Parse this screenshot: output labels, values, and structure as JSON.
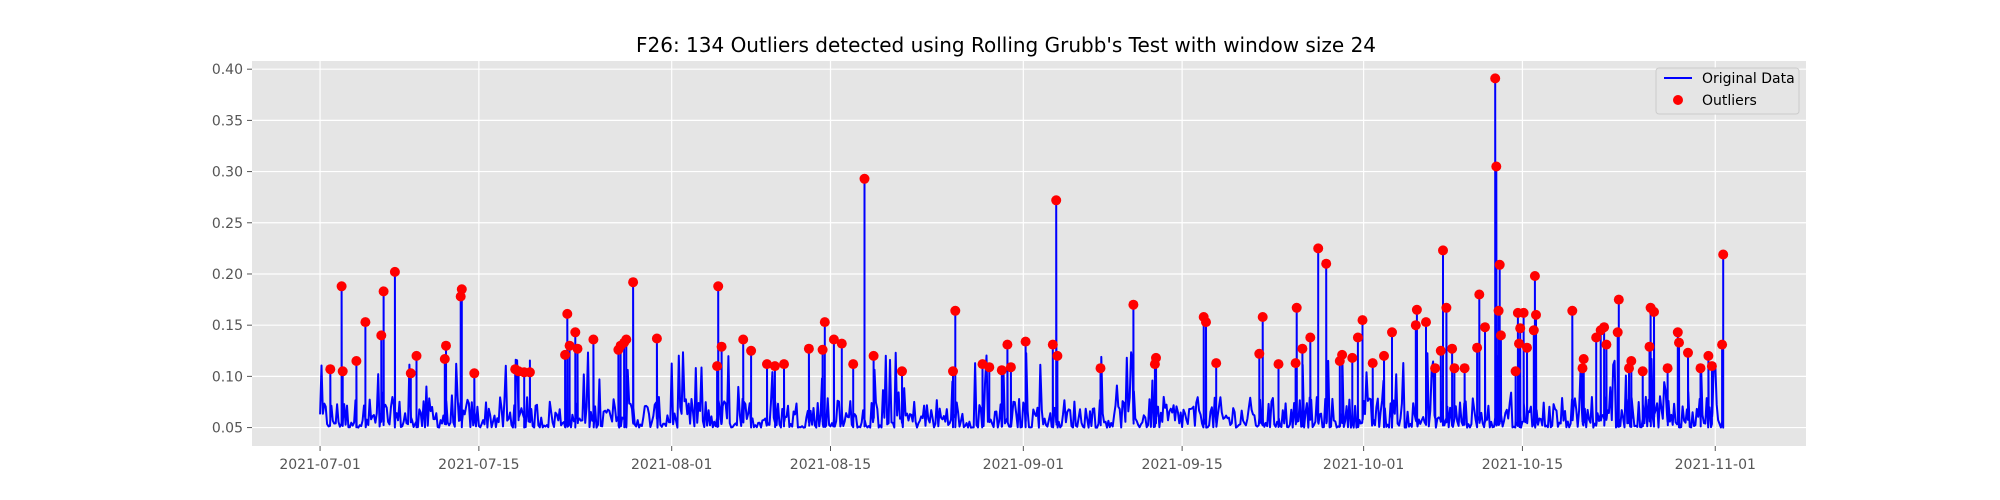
{
  "chart_data": {
    "type": "line",
    "title": "F26: 134 Outliers detected using Rolling Grubb's Test with window size 24",
    "xlabel": "",
    "ylabel": "",
    "x_tick_labels": [
      "2021-07-01",
      "2021-07-15",
      "2021-08-01",
      "2021-08-15",
      "2021-09-01",
      "2021-09-15",
      "2021-10-01",
      "2021-10-15",
      "2021-11-01"
    ],
    "x_tick_days": [
      0,
      14,
      31,
      45,
      62,
      76,
      92,
      106,
      123
    ],
    "xlim_days": [
      -6,
      131
    ],
    "y_ticks": [
      0.05,
      0.1,
      0.15,
      0.2,
      0.25,
      0.3,
      0.35,
      0.4
    ],
    "y_tick_labels": [
      "0.05",
      "0.10",
      "0.15",
      "0.20",
      "0.25",
      "0.30",
      "0.35",
      "0.40"
    ],
    "ylim": [
      0.032,
      0.408
    ],
    "baseline": 0.05,
    "grid": true,
    "legend": {
      "placement": "top-right",
      "entries": [
        "Original Data",
        "Outliers"
      ]
    },
    "colors": {
      "line": "#0000ff",
      "outlier": "#ff0000",
      "background": "#e5e5e5",
      "grid": "#ffffff"
    },
    "series": [
      {
        "name": "Original Data",
        "kind": "line"
      },
      {
        "name": "Outliers",
        "kind": "scatter",
        "points": [
          [
            0.9,
            0.107
          ],
          [
            1.9,
            0.188
          ],
          [
            2.0,
            0.105
          ],
          [
            3.2,
            0.115
          ],
          [
            4.0,
            0.153
          ],
          [
            5.4,
            0.14
          ],
          [
            5.6,
            0.183
          ],
          [
            6.6,
            0.202
          ],
          [
            8.0,
            0.103
          ],
          [
            8.5,
            0.12
          ],
          [
            11.0,
            0.117
          ],
          [
            11.1,
            0.13
          ],
          [
            12.4,
            0.178
          ],
          [
            12.5,
            0.185
          ],
          [
            13.6,
            0.103
          ],
          [
            17.2,
            0.107
          ],
          [
            17.5,
            0.105
          ],
          [
            18.0,
            0.104
          ],
          [
            18.5,
            0.104
          ],
          [
            21.6,
            0.121
          ],
          [
            21.8,
            0.161
          ],
          [
            22.0,
            0.13
          ],
          [
            22.5,
            0.143
          ],
          [
            22.7,
            0.127
          ],
          [
            24.1,
            0.136
          ],
          [
            26.3,
            0.126
          ],
          [
            26.5,
            0.13
          ],
          [
            26.8,
            0.133
          ],
          [
            27.0,
            0.136
          ],
          [
            27.6,
            0.192
          ],
          [
            29.7,
            0.137
          ],
          [
            35.0,
            0.11
          ],
          [
            35.1,
            0.188
          ],
          [
            35.4,
            0.129
          ],
          [
            37.3,
            0.136
          ],
          [
            38.0,
            0.125
          ],
          [
            39.4,
            0.112
          ],
          [
            40.1,
            0.11
          ],
          [
            40.9,
            0.112
          ],
          [
            43.1,
            0.127
          ],
          [
            44.3,
            0.126
          ],
          [
            44.5,
            0.153
          ],
          [
            45.3,
            0.136
          ],
          [
            46.0,
            0.132
          ],
          [
            47.0,
            0.112
          ],
          [
            48.0,
            0.293
          ],
          [
            48.8,
            0.12
          ],
          [
            51.3,
            0.105
          ],
          [
            55.8,
            0.105
          ],
          [
            56.0,
            0.164
          ],
          [
            58.4,
            0.112
          ],
          [
            59.0,
            0.109
          ],
          [
            60.1,
            0.106
          ],
          [
            60.6,
            0.131
          ],
          [
            60.9,
            0.109
          ],
          [
            62.2,
            0.134
          ],
          [
            64.6,
            0.131
          ],
          [
            64.9,
            0.272
          ],
          [
            65.0,
            0.12
          ],
          [
            68.8,
            0.108
          ],
          [
            71.7,
            0.17
          ],
          [
            73.6,
            0.112
          ],
          [
            73.7,
            0.118
          ],
          [
            77.9,
            0.158
          ],
          [
            78.1,
            0.153
          ],
          [
            79.0,
            0.113
          ],
          [
            82.8,
            0.122
          ],
          [
            83.1,
            0.158
          ],
          [
            84.5,
            0.112
          ],
          [
            86.0,
            0.113
          ],
          [
            86.1,
            0.167
          ],
          [
            86.6,
            0.127
          ],
          [
            87.3,
            0.138
          ],
          [
            88.0,
            0.225
          ],
          [
            88.7,
            0.21
          ],
          [
            89.9,
            0.115
          ],
          [
            90.1,
            0.121
          ],
          [
            91.0,
            0.118
          ],
          [
            91.5,
            0.138
          ],
          [
            91.9,
            0.155
          ],
          [
            92.8,
            0.113
          ],
          [
            93.8,
            0.12
          ],
          [
            94.5,
            0.143
          ],
          [
            96.6,
            0.15
          ],
          [
            96.7,
            0.165
          ],
          [
            97.5,
            0.153
          ],
          [
            98.3,
            0.108
          ],
          [
            98.8,
            0.125
          ],
          [
            99.0,
            0.223
          ],
          [
            99.3,
            0.167
          ],
          [
            99.8,
            0.127
          ],
          [
            100.0,
            0.108
          ],
          [
            100.9,
            0.108
          ],
          [
            102.0,
            0.128
          ],
          [
            102.2,
            0.18
          ],
          [
            102.7,
            0.148
          ],
          [
            103.6,
            0.391
          ],
          [
            103.7,
            0.305
          ],
          [
            103.9,
            0.164
          ],
          [
            104.0,
            0.209
          ],
          [
            104.1,
            0.14
          ],
          [
            105.4,
            0.105
          ],
          [
            105.6,
            0.162
          ],
          [
            105.7,
            0.132
          ],
          [
            105.8,
            0.147
          ],
          [
            106.1,
            0.162
          ],
          [
            106.4,
            0.128
          ],
          [
            107.0,
            0.145
          ],
          [
            107.1,
            0.198
          ],
          [
            107.2,
            0.16
          ],
          [
            110.4,
            0.164
          ],
          [
            111.3,
            0.108
          ],
          [
            111.4,
            0.117
          ],
          [
            112.5,
            0.138
          ],
          [
            112.9,
            0.145
          ],
          [
            113.2,
            0.148
          ],
          [
            113.4,
            0.131
          ],
          [
            114.4,
            0.143
          ],
          [
            114.5,
            0.175
          ],
          [
            115.4,
            0.108
          ],
          [
            115.6,
            0.115
          ],
          [
            116.6,
            0.105
          ],
          [
            117.2,
            0.129
          ],
          [
            117.3,
            0.167
          ],
          [
            117.6,
            0.163
          ],
          [
            118.8,
            0.108
          ],
          [
            119.7,
            0.143
          ],
          [
            119.8,
            0.133
          ],
          [
            120.6,
            0.123
          ],
          [
            121.7,
            0.108
          ],
          [
            122.4,
            0.12
          ],
          [
            122.7,
            0.11
          ],
          [
            123.6,
            0.131
          ],
          [
            123.7,
            0.219
          ]
        ]
      }
    ]
  }
}
